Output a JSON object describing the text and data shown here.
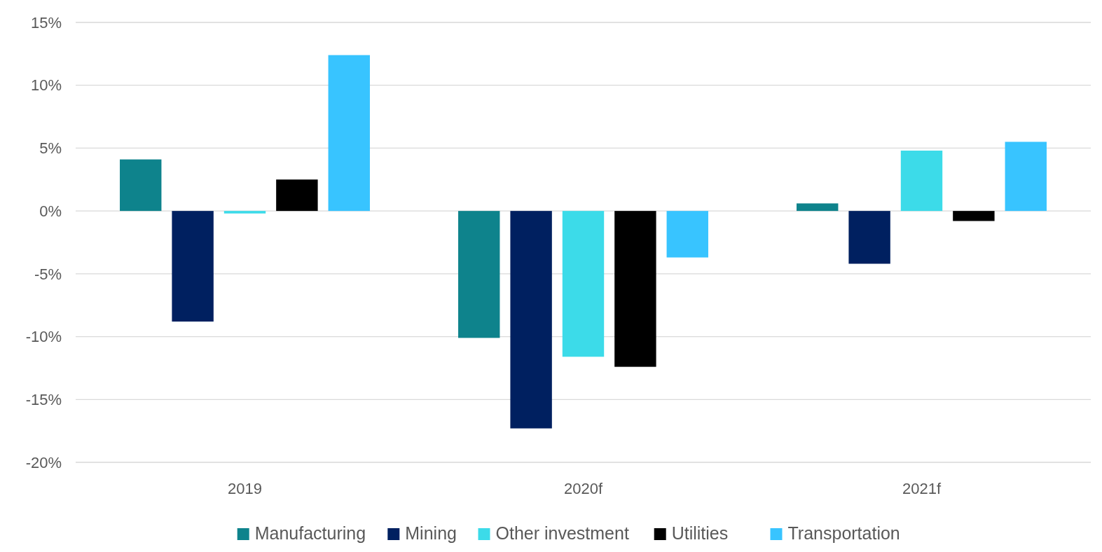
{
  "chart_data": {
    "type": "bar",
    "categories": [
      "2019",
      "2020f",
      "2021f"
    ],
    "series": [
      {
        "name": "Manufacturing",
        "color": "#0e838c",
        "values": [
          4.1,
          -10.1,
          0.6
        ]
      },
      {
        "name": "Mining",
        "color": "#002060",
        "values": [
          -8.8,
          -17.3,
          -4.2
        ]
      },
      {
        "name": "Other investment",
        "color": "#3cdbe9",
        "values": [
          -0.2,
          -11.6,
          4.8
        ]
      },
      {
        "name": "Utilities",
        "color": "#000000",
        "values": [
          2.5,
          -12.4,
          -0.8
        ]
      },
      {
        "name": "Transportation",
        "color": "#38c4ff",
        "values": [
          12.4,
          -3.7,
          5.5
        ]
      }
    ],
    "ylim": [
      -20,
      15
    ],
    "yticks": [
      {
        "value": -20,
        "label": "-20%"
      },
      {
        "value": -15,
        "label": "-15%"
      },
      {
        "value": -10,
        "label": "-10%"
      },
      {
        "value": -5,
        "label": "-5%"
      },
      {
        "value": 0,
        "label": "0%"
      },
      {
        "value": 5,
        "label": "5%"
      },
      {
        "value": 10,
        "label": "10%"
      },
      {
        "value": 15,
        "label": "15%"
      }
    ],
    "grid": "y",
    "legend": "bottom"
  }
}
